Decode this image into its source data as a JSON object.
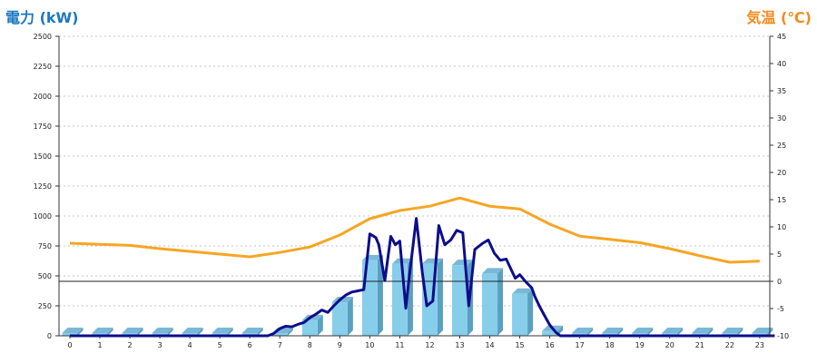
{
  "chart_data": {
    "type": "bar+line",
    "y_left_label": "電力 (kW)",
    "y_right_label": "気温 (℃)",
    "x_ticks": [
      "0",
      "1",
      "2",
      "3",
      "4",
      "5",
      "6",
      "7",
      "8",
      "9",
      "10",
      "11",
      "12",
      "13",
      "14",
      "15",
      "16",
      "17",
      "18",
      "19",
      "20",
      "21",
      "22",
      "23"
    ],
    "y_left_ticks": [
      "0",
      "250",
      "500",
      "750",
      "1000",
      "1250",
      "1500",
      "1750",
      "2000",
      "2250",
      "2500"
    ],
    "y_right_ticks": [
      "-10",
      "-5",
      "0",
      "5",
      "10",
      "15",
      "20",
      "25",
      "30",
      "35",
      "40",
      "45"
    ],
    "y_left_range": [
      0,
      2500
    ],
    "y_right_range": [
      -10,
      45
    ],
    "grid": "horizontal dotted",
    "bars": {
      "name": "hourly power (kW)",
      "color": "#87ceeb",
      "values": [
        0,
        0,
        0,
        0,
        0,
        0,
        0,
        0,
        130,
        280,
        630,
        600,
        600,
        590,
        520,
        350,
        40,
        0,
        0,
        0,
        0,
        0,
        0,
        0
      ]
    },
    "power_line": {
      "color": "#0d0d8c",
      "points": [
        [
          0,
          0
        ],
        [
          6.6,
          0
        ],
        [
          6.8,
          20
        ],
        [
          7.0,
          60
        ],
        [
          7.2,
          80
        ],
        [
          7.4,
          75
        ],
        [
          7.6,
          95
        ],
        [
          7.8,
          110
        ],
        [
          8.0,
          150
        ],
        [
          8.2,
          180
        ],
        [
          8.4,
          215
        ],
        [
          8.6,
          195
        ],
        [
          8.8,
          250
        ],
        [
          9.0,
          300
        ],
        [
          9.2,
          340
        ],
        [
          9.4,
          365
        ],
        [
          9.6,
          375
        ],
        [
          9.8,
          385
        ],
        [
          10.0,
          850
        ],
        [
          10.2,
          820
        ],
        [
          10.3,
          760
        ],
        [
          10.5,
          460
        ],
        [
          10.7,
          830
        ],
        [
          10.85,
          760
        ],
        [
          11.0,
          790
        ],
        [
          11.2,
          230
        ],
        [
          11.3,
          460
        ],
        [
          11.55,
          980
        ],
        [
          11.75,
          530
        ],
        [
          11.9,
          250
        ],
        [
          12.1,
          290
        ],
        [
          12.3,
          920
        ],
        [
          12.5,
          760
        ],
        [
          12.7,
          800
        ],
        [
          12.9,
          880
        ],
        [
          13.1,
          860
        ],
        [
          13.3,
          250
        ],
        [
          13.5,
          720
        ],
        [
          13.75,
          770
        ],
        [
          13.95,
          800
        ],
        [
          14.15,
          690
        ],
        [
          14.35,
          630
        ],
        [
          14.55,
          640
        ],
        [
          14.7,
          560
        ],
        [
          14.85,
          480
        ],
        [
          15.0,
          510
        ],
        [
          15.2,
          450
        ],
        [
          15.4,
          400
        ],
        [
          15.5,
          330
        ],
        [
          15.65,
          250
        ],
        [
          15.8,
          180
        ],
        [
          16.0,
          90
        ],
        [
          16.2,
          30
        ],
        [
          16.35,
          0
        ],
        [
          23.5,
          0
        ]
      ]
    },
    "temperature_line": {
      "color": "#f5a623",
      "values": [
        7.0,
        6.8,
        6.6,
        6.0,
        5.5,
        5.0,
        4.5,
        5.3,
        6.3,
        8.5,
        11.5,
        13.0,
        13.8,
        15.3,
        13.8,
        13.3,
        10.5,
        8.3,
        7.7,
        7.1,
        6.0,
        4.7,
        3.5,
        3.7
      ]
    }
  }
}
